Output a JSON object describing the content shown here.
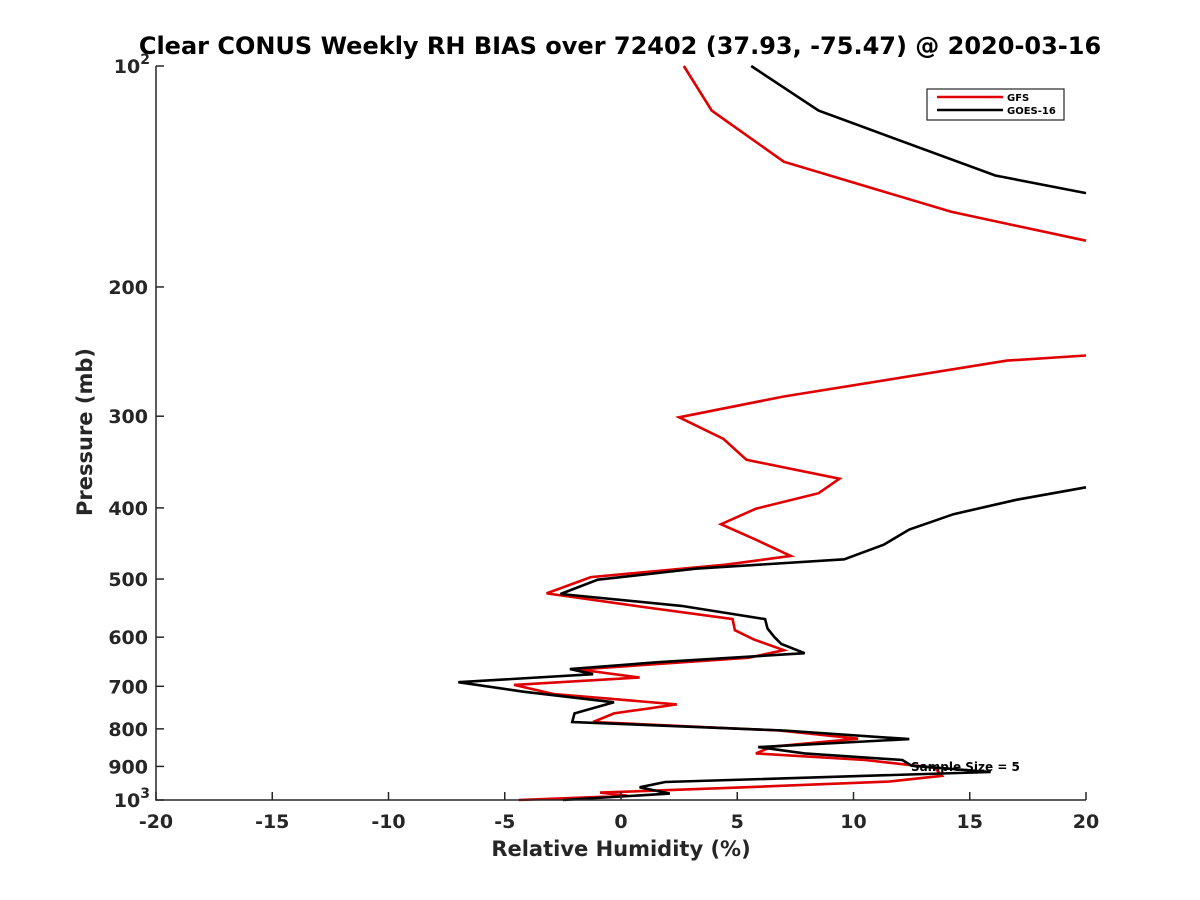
{
  "chart_data": {
    "type": "line",
    "title": "Clear CONUS Weekly RH BIAS over 72402 (37.93, -75.47) @ 2020-03-16",
    "xlabel": "Relative Humidity (%)",
    "ylabel": "Pressure (mb)",
    "xlim": [
      -20,
      20
    ],
    "ylim": [
      100,
      1000
    ],
    "yscale": "log",
    "y_reversed": true,
    "grid": false,
    "x_ticks": [
      -20,
      -15,
      -10,
      -5,
      0,
      5,
      10,
      15,
      20
    ],
    "x_tick_labels": [
      "-20",
      "-15",
      "-10",
      "-5",
      "0",
      "5",
      "10",
      "15",
      "20"
    ],
    "y_ticks": [
      {
        "value": 100,
        "label": "10",
        "sup": "2"
      },
      {
        "value": 200,
        "label": "200",
        "sup": ""
      },
      {
        "value": 300,
        "label": "300",
        "sup": ""
      },
      {
        "value": 400,
        "label": "400",
        "sup": ""
      },
      {
        "value": 500,
        "label": "500",
        "sup": ""
      },
      {
        "value": 600,
        "label": "600",
        "sup": ""
      },
      {
        "value": 700,
        "label": "700",
        "sup": ""
      },
      {
        "value": 800,
        "label": "800",
        "sup": ""
      },
      {
        "value": 900,
        "label": "900",
        "sup": ""
      },
      {
        "value": 1000,
        "label": "10",
        "sup": "3"
      }
    ],
    "legend_position": "top-right",
    "annotation": "Sample Size = 5",
    "series": [
      {
        "name": "GFS",
        "color": "#e00000",
        "segments": [
          [
            [
              2.7,
              100
            ],
            [
              3.9,
              115
            ],
            [
              7.0,
              135
            ],
            [
              14.2,
              158
            ],
            [
              20,
              173
            ]
          ],
          [
            [
              20,
              248
            ],
            [
              16.6,
              252
            ],
            [
              7.0,
              282
            ],
            [
              2.5,
              301
            ],
            [
              4.4,
              322
            ],
            [
              5.4,
              344
            ],
            [
              9.4,
              365
            ],
            [
              8.5,
              382
            ],
            [
              5.8,
              401
            ],
            [
              4.3,
              421
            ],
            [
              5.8,
              442
            ],
            [
              7.3,
              465
            ],
            [
              4.5,
              478
            ],
            [
              -1.3,
              497
            ],
            [
              -3.2,
              523
            ],
            [
              1.0,
              546
            ],
            [
              4.8,
              567
            ],
            [
              4.9,
              587
            ],
            [
              5.7,
              604
            ],
            [
              7.0,
              625
            ],
            [
              5.5,
              640
            ],
            [
              -1.8,
              664
            ],
            [
              0.8,
              681
            ],
            [
              -4.6,
              697
            ],
            [
              -2.9,
              717
            ],
            [
              2.4,
              741
            ],
            [
              -0.3,
              762
            ],
            [
              -1.2,
              783
            ],
            [
              6.8,
              804
            ],
            [
              10.2,
              825
            ],
            [
              6.5,
              846
            ],
            [
              5.8,
              864
            ],
            [
              10.5,
              882
            ],
            [
              13.5,
              904
            ],
            [
              13.8,
              927
            ],
            [
              11.5,
              944
            ],
            [
              5.3,
              961
            ],
            [
              -0.9,
              977
            ],
            [
              0.3,
              987
            ],
            [
              -4.4,
              1000
            ]
          ]
        ]
      },
      {
        "name": "GOES-16",
        "color": "#000000",
        "segments": [
          [
            [
              5.6,
              100
            ],
            [
              8.5,
              115
            ],
            [
              16.1,
              141
            ],
            [
              20,
              149
            ]
          ],
          [
            [
              20,
              375
            ],
            [
              17.0,
              390
            ],
            [
              14.3,
              408
            ],
            [
              12.4,
              428
            ],
            [
              11.3,
              449
            ],
            [
              9.6,
              470
            ],
            [
              3.2,
              484
            ],
            [
              -1.0,
              501
            ],
            [
              -2.6,
              524
            ],
            [
              2.6,
              544
            ],
            [
              6.2,
              567
            ],
            [
              6.3,
              584
            ],
            [
              6.6,
              600
            ],
            [
              6.9,
              613
            ],
            [
              7.9,
              631
            ],
            [
              1.6,
              649
            ],
            [
              -2.2,
              663
            ],
            [
              -1.2,
              674
            ],
            [
              -7.0,
              691
            ],
            [
              -4.2,
              712
            ],
            [
              -0.3,
              736
            ],
            [
              -2.0,
              762
            ],
            [
              -2.1,
              783
            ],
            [
              7.0,
              804
            ],
            [
              12.4,
              826
            ],
            [
              5.9,
              847
            ],
            [
              7.9,
              864
            ],
            [
              12.1,
              882
            ],
            [
              12.5,
              898
            ],
            [
              15.9,
              916
            ],
            [
              1.9,
              945
            ],
            [
              0.8,
              961
            ],
            [
              2.1,
              980
            ],
            [
              -2.5,
              1000
            ]
          ]
        ]
      }
    ]
  }
}
